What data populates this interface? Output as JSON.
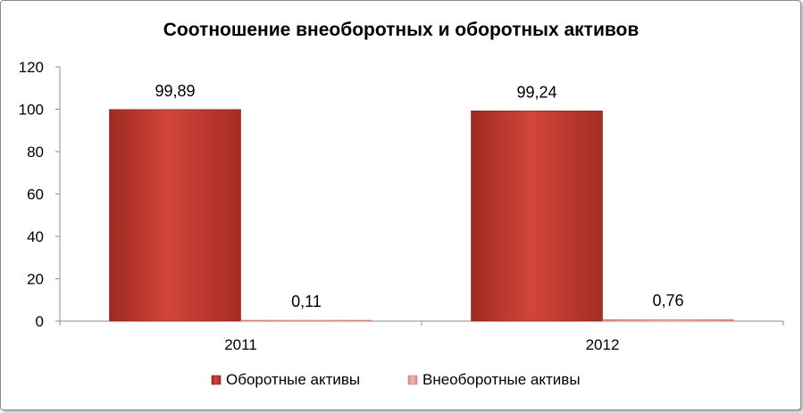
{
  "chart_data": {
    "type": "bar",
    "title": "Соотношение внеоборотных и оборотных активов",
    "categories": [
      "2011",
      "2012"
    ],
    "series": [
      {
        "name": "Оборотные активы",
        "values": [
          99.89,
          99.24
        ],
        "labels": [
          "99,89",
          "99,24"
        ],
        "color": "#c0392b"
      },
      {
        "name": "Внеоборотные активы",
        "values": [
          0.11,
          0.76
        ],
        "labels": [
          "0,11",
          "0,76"
        ],
        "color": "#e6a39b"
      }
    ],
    "ylim": [
      0,
      120
    ],
    "yticks": [
      "0",
      "20",
      "40",
      "60",
      "80",
      "100",
      "120"
    ],
    "legend_position": "bottom",
    "grid": false
  }
}
